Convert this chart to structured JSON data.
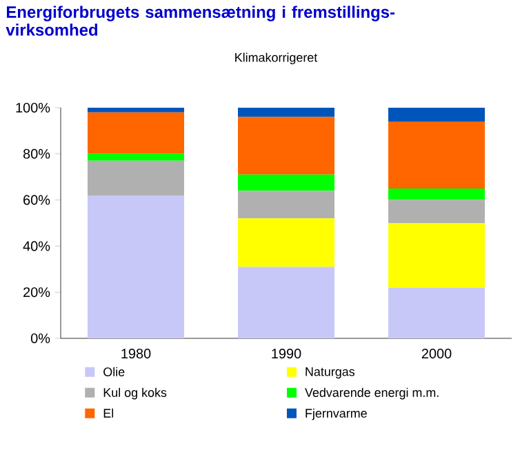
{
  "chart_data": {
    "type": "bar",
    "stacked": true,
    "title": "Energiforbrugets sammensætning i fremstillings-virksomhed",
    "subtitle": "Klimakorrigeret",
    "categories": [
      "1980",
      "1990",
      "2000"
    ],
    "series": [
      {
        "name": "Olie",
        "color": "#c8c8f8",
        "values": [
          62,
          31,
          22
        ]
      },
      {
        "name": "Naturgas",
        "color": "#ffff00",
        "values": [
          0,
          21,
          28
        ]
      },
      {
        "name": "Kul og koks",
        "color": "#b0b0b0",
        "values": [
          15,
          12,
          10
        ]
      },
      {
        "name": "Vedvarende energi m.m.",
        "color": "#00ff00",
        "values": [
          3,
          7,
          5
        ]
      },
      {
        "name": "El",
        "color": "#ff6600",
        "values": [
          18,
          25,
          29
        ]
      },
      {
        "name": "Fjernvarme",
        "color": "#0055bb",
        "values": [
          2,
          4,
          6
        ]
      }
    ],
    "ylim": [
      0,
      100
    ],
    "yticks": [
      {
        "value": 0,
        "label": "0%"
      },
      {
        "value": 20,
        "label": "20%"
      },
      {
        "value": 40,
        "label": "40%"
      },
      {
        "value": 60,
        "label": "60%"
      },
      {
        "value": 80,
        "label": "80%"
      },
      {
        "value": 100,
        "label": "100%"
      }
    ],
    "legend": "bottom",
    "grid": false
  }
}
